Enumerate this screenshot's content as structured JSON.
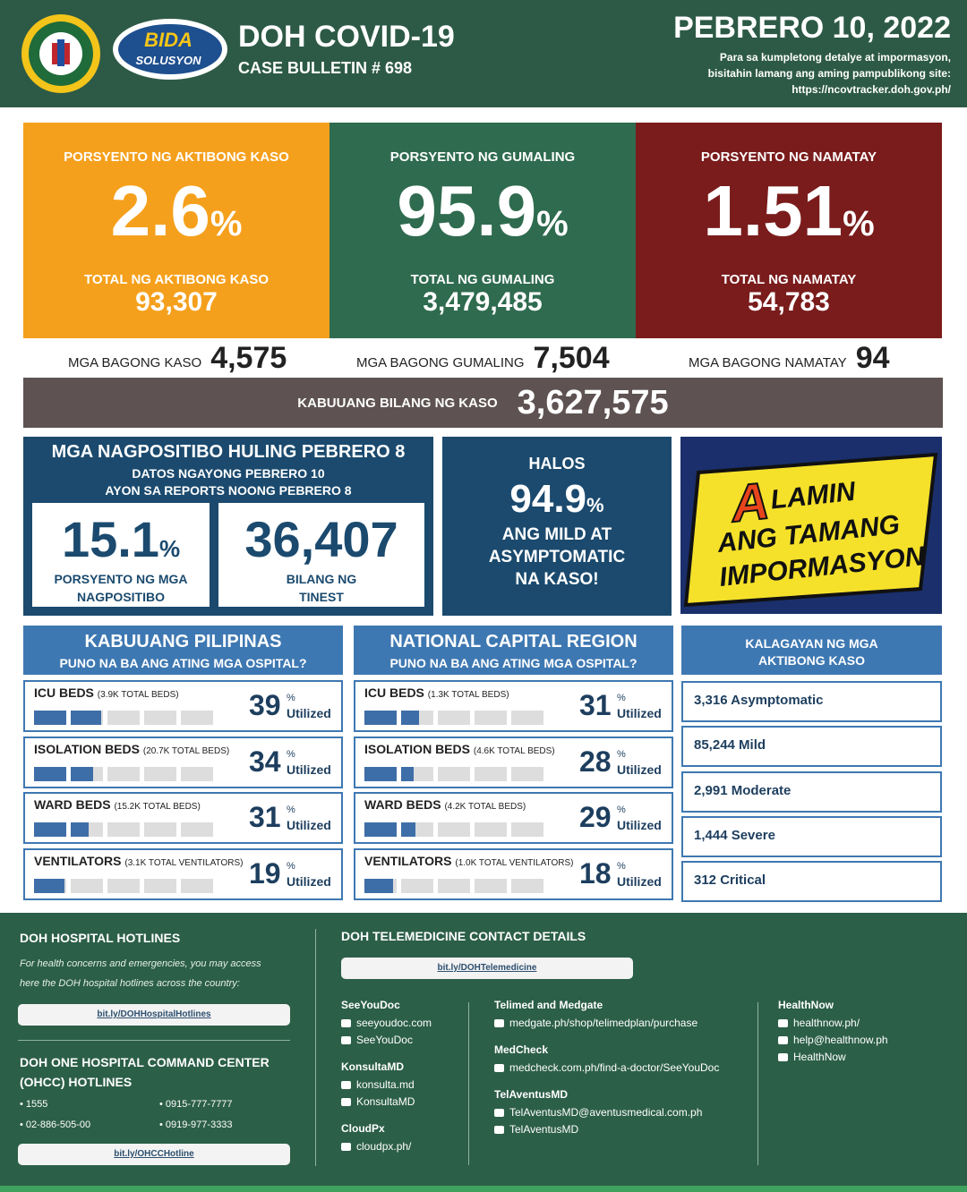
{
  "header": {
    "logo_text": [
      "BIDA",
      "SOLUSYON"
    ],
    "title": "DOH COVID-19",
    "bulletin": "CASE BULLETIN # 698",
    "date": "PEBRERO 10, 2022",
    "note": [
      "Para sa kumpletong detalye at impormasyon,",
      "bisitahin lamang ang aming pampublikong site:"
    ],
    "url": "https://ncovtracker.doh.gov.ph/"
  },
  "summary": {
    "cards": [
      {
        "label": "PORSYENTO NG AKTIBONG KASO",
        "percent": 2.6,
        "percent_sign": "%",
        "total_label": "TOTAL NG AKTIBONG KASO",
        "total": "93,307"
      },
      {
        "label": "PORSYENTO NG GUMALING",
        "percent": 95.9,
        "percent_sign": "%",
        "total_label": "TOTAL NG GUMALING",
        "total": "3,479,485"
      },
      {
        "label": "PORSYENTO NG NAMATAY",
        "percent": 1.51,
        "percent_sign": "%",
        "total_label": "TOTAL NG NAMATAY",
        "total": "54,783"
      }
    ],
    "new": [
      {
        "label": "MGA BAGONG KASO",
        "value": "4,575"
      },
      {
        "label": "MGA BAGONG GUMALING",
        "value": "7,504"
      },
      {
        "label": "MGA BAGONG NAMATAY",
        "value": "94"
      }
    ],
    "total_label": "KABUUANG BILANG NG KASO",
    "total": "3,627,575"
  },
  "positivity": {
    "title": "MGA NAGPOSITIBO HULING PEBRERO 8",
    "subtitle": [
      "DATOS NGAYONG PEBRERO 10",
      "AYON SA REPORTS NOONG PEBRERO 8"
    ],
    "rate": 15.1,
    "rate_sign": "%",
    "rate_label": [
      "PORSYENTO NG MGA",
      "NAGPOSITIBO"
    ],
    "tested": "36,407",
    "tested_label": [
      "BILANG NG",
      "TINEST"
    ]
  },
  "mild": {
    "lead": "HALOS",
    "value": 94.9,
    "sign": "%",
    "text": [
      "ANG MILD AT",
      "ASYMPTOMATIC",
      "NA KASO!"
    ]
  },
  "banner": {
    "lines": [
      "A",
      "LAMIN",
      "ANG TAMANG",
      "IMPORMASYON"
    ]
  },
  "hospitals": [
    {
      "title": "KABUUANG PILIPINAS",
      "subtitle": "PUNO NA BA ANG ATING MGA OSPITAL?",
      "rows": [
        {
          "name": "ICU BEDS",
          "capacity": "(3.9K TOTAL BEDS)",
          "value": 39,
          "sign": "%",
          "unit": "Utilized"
        },
        {
          "name": "ISOLATION BEDS",
          "capacity": "(20.7K TOTAL BEDS)",
          "value": 34,
          "sign": "%",
          "unit": "Utilized"
        },
        {
          "name": "WARD BEDS",
          "capacity": "(15.2K TOTAL BEDS)",
          "value": 31,
          "sign": "%",
          "unit": "Utilized"
        },
        {
          "name": "VENTILATORS",
          "capacity": "(3.1K TOTAL VENTILATORS)",
          "value": 19,
          "sign": "%",
          "unit": "Utilized"
        }
      ]
    },
    {
      "title": "NATIONAL CAPITAL REGION",
      "subtitle": "PUNO NA BA ANG ATING MGA OSPITAL?",
      "rows": [
        {
          "name": "ICU BEDS",
          "capacity": "(1.3K TOTAL BEDS)",
          "value": 31,
          "sign": "%",
          "unit": "Utilized"
        },
        {
          "name": "ISOLATION BEDS",
          "capacity": "(4.6K TOTAL BEDS)",
          "value": 28,
          "sign": "%",
          "unit": "Utilized"
        },
        {
          "name": "WARD BEDS",
          "capacity": "(4.2K TOTAL BEDS)",
          "value": 29,
          "sign": "%",
          "unit": "Utilized"
        },
        {
          "name": "VENTILATORS",
          "capacity": "(1.0K TOTAL VENTILATORS)",
          "value": 18,
          "sign": "%",
          "unit": "Utilized"
        }
      ]
    }
  ],
  "active_status": {
    "title": [
      "KALAGAYAN NG MGA",
      "AKTIBONG KASO"
    ],
    "items": [
      "3,316 Asymptomatic",
      "85,244 Mild",
      "2,991 Moderate",
      "1,444 Severe",
      "312 Critical"
    ]
  },
  "hotlines": {
    "title": "DOH HOSPITAL HOTLINES",
    "text": [
      "For health concerns and emergencies, you may access",
      "here the DOH hospital hotlines across the country:"
    ],
    "link": "bit.ly/DOHHospitalHotlines",
    "ohcc_title": [
      "DOH ONE HOSPITAL COMMAND CENTER",
      "(OHCC) HOTLINES"
    ],
    "numbers": [
      "1555",
      "0915-777-7777",
      "02-886-505-00",
      "0919-977-3333"
    ],
    "ohcc_link": "bit.ly/OHCCHotline"
  },
  "telemedicine": {
    "title": "DOH TELEMEDICINE CONTACT DETAILS",
    "link": "bit.ly/DOHTelemedicine",
    "columns": [
      [
        {
          "name": "SeeYouDoc",
          "items": [
            "seeyoudoc.com",
            "SeeYouDoc"
          ]
        },
        {
          "name": "KonsultaMD",
          "items": [
            "konsulta.md",
            "KonsultaMD"
          ]
        },
        {
          "name": "CloudPx",
          "items": [
            "cloudpx.ph/"
          ]
        }
      ],
      [
        {
          "name": "Telimed and Medgate",
          "items": [
            "medgate.ph/shop/telimedplan/purchase"
          ]
        },
        {
          "name": "MedCheck",
          "items": [
            "medcheck.com.ph/find-a-doctor/SeeYouDoc"
          ]
        },
        {
          "name": "TelAventusMD",
          "items": [
            "TelAventusMD@aventusmedical.com.ph",
            "TelAventusMD"
          ]
        }
      ],
      [
        {
          "name": "HealthNow",
          "items": [
            "healthnow.ph/",
            "help@healthnow.ph",
            "HealthNow"
          ]
        }
      ]
    ]
  }
}
